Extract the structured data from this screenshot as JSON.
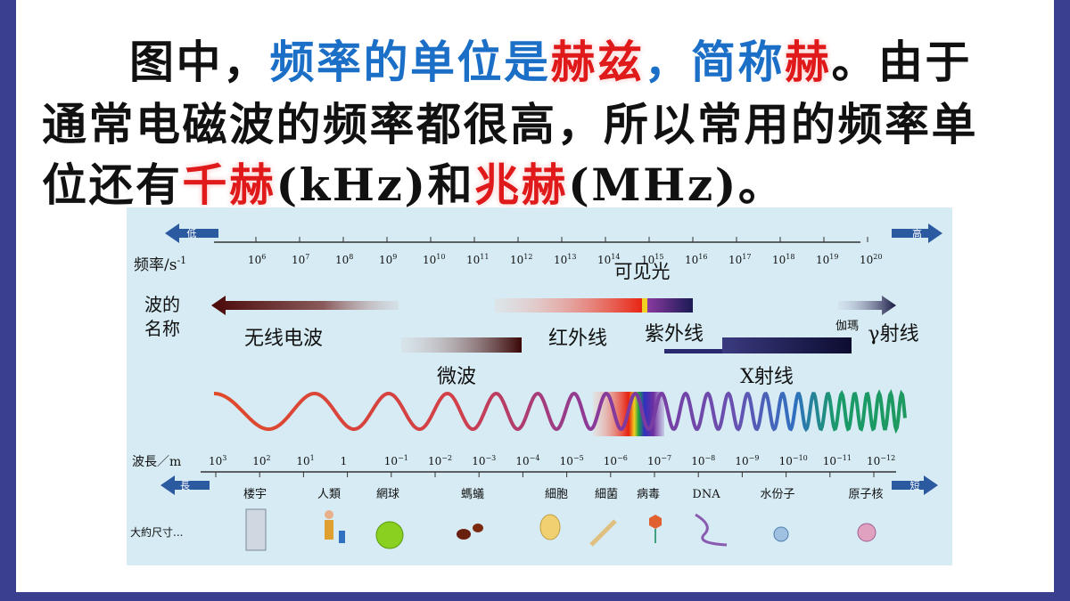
{
  "paragraph": {
    "lines": [
      {
        "segments": [
          {
            "text": "图中，",
            "color": "#111111"
          },
          {
            "text": "频率的单位是",
            "color": "#1b6fc6"
          },
          {
            "text": "赫兹",
            "color": "#e0191b"
          },
          {
            "text": "，简称",
            "color": "#1b6fc6"
          },
          {
            "text": "赫",
            "color": "#e0191b"
          },
          {
            "text": "。由于",
            "color": "#111111"
          }
        ]
      },
      {
        "segments": [
          {
            "text": "通常电磁波的频率都很高，所以常用的频率单",
            "color": "#111111"
          }
        ]
      },
      {
        "segments": [
          {
            "text": "位还有",
            "color": "#111111"
          },
          {
            "text": "千赫",
            "color": "#e0191b"
          },
          {
            "text": "(kHz)和",
            "color": "#111111"
          },
          {
            "text": "兆赫",
            "color": "#e0191b"
          },
          {
            "text": "(MHz)。",
            "color": "#111111"
          }
        ]
      }
    ]
  },
  "diagram": {
    "frequency_axis": {
      "label": "频率/s",
      "label_exp": "-1",
      "low": "低",
      "high": "高",
      "base": "10",
      "exponents": [
        "6",
        "7",
        "8",
        "9",
        "10",
        "11",
        "12",
        "13",
        "14",
        "15",
        "16",
        "17",
        "18",
        "19",
        "20"
      ]
    },
    "wavelength_axis": {
      "label": "波長／m",
      "long": "長",
      "short": "短",
      "ticks": [
        {
          "base": "10",
          "exp": "3"
        },
        {
          "base": "10",
          "exp": "2"
        },
        {
          "base": "10",
          "exp": "1"
        },
        {
          "base": "1"
        },
        {
          "base": "10",
          "exp": "−1"
        },
        {
          "base": "10",
          "exp": "−2"
        },
        {
          "base": "10",
          "exp": "−3"
        },
        {
          "base": "10",
          "exp": "−4"
        },
        {
          "base": "10",
          "exp": "−5"
        },
        {
          "base": "10",
          "exp": "−6"
        },
        {
          "base": "10",
          "exp": "−7"
        },
        {
          "base": "10",
          "exp": "−8"
        },
        {
          "base": "10",
          "exp": "−9"
        },
        {
          "base": "10",
          "exp": "−10"
        },
        {
          "base": "10",
          "exp": "−11"
        },
        {
          "base": "10",
          "exp": "−12"
        }
      ]
    },
    "wave_name_label": [
      "波的",
      "名称"
    ],
    "bands": {
      "visible": "可见光",
      "radio": "无线电波",
      "infrared": "红外线",
      "ultraviolet": "紫外线",
      "gamma_small": "伽瑪",
      "gamma": "γ射线",
      "microwave": "微波",
      "xray": "X射线"
    },
    "size_label": "大約尺寸...",
    "objects": [
      "楼宇",
      "人類",
      "網球",
      "螞蟻",
      "細胞",
      "細菌",
      "病毒",
      "DNA",
      "水份子",
      "原子核"
    ]
  }
}
